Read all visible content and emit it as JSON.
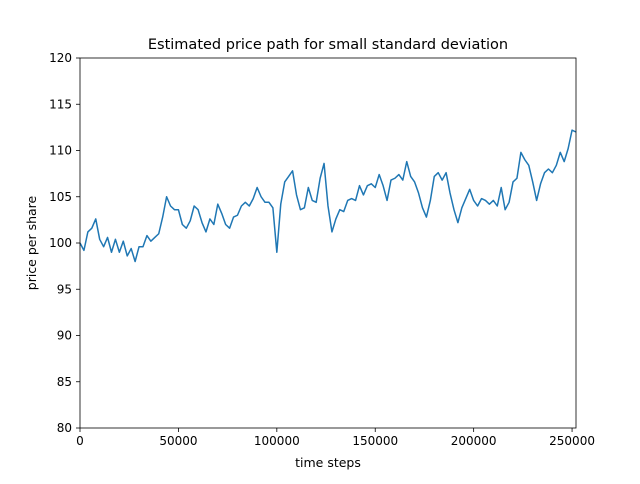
{
  "chart_data": {
    "type": "line",
    "title": "Estimated price path for small standard deviation",
    "xlabel": "time steps",
    "ylabel": "price per share",
    "xlim": [
      0,
      252000
    ],
    "ylim": [
      80,
      120
    ],
    "x_ticks": [
      0,
      50000,
      100000,
      150000,
      200000,
      250000
    ],
    "x_tick_labels": [
      "0",
      "50000",
      "100000",
      "150000",
      "200000",
      "250000"
    ],
    "y_ticks": [
      80,
      85,
      90,
      95,
      100,
      105,
      110,
      115,
      120
    ],
    "y_tick_labels": [
      "80",
      "85",
      "90",
      "95",
      "100",
      "105",
      "110",
      "115",
      "120"
    ],
    "grid": false,
    "series": [
      {
        "color": "#1f77b4",
        "x": [
          0,
          2000,
          4000,
          6000,
          8000,
          10000,
          12000,
          14000,
          16000,
          18000,
          20000,
          22000,
          24000,
          26000,
          28000,
          30000,
          32000,
          34000,
          36000,
          38000,
          40000,
          42000,
          44000,
          46000,
          48000,
          50000,
          52000,
          54000,
          56000,
          58000,
          60000,
          62000,
          64000,
          66000,
          68000,
          70000,
          72000,
          74000,
          76000,
          78000,
          80000,
          82000,
          84000,
          86000,
          88000,
          90000,
          92000,
          94000,
          96000,
          98000,
          100000,
          102000,
          104000,
          106000,
          108000,
          110000,
          112000,
          114000,
          116000,
          118000,
          120000,
          122000,
          124000,
          126000,
          128000,
          130000,
          132000,
          134000,
          136000,
          138000,
          140000,
          142000,
          144000,
          146000,
          148000,
          150000,
          152000,
          154000,
          156000,
          158000,
          160000,
          162000,
          164000,
          166000,
          168000,
          170000,
          172000,
          174000,
          176000,
          178000,
          180000,
          182000,
          184000,
          186000,
          188000,
          190000,
          192000,
          194000,
          196000,
          198000,
          200000,
          202000,
          204000,
          206000,
          208000,
          210000,
          212000,
          214000,
          216000,
          218000,
          220000,
          222000,
          224000,
          226000,
          228000,
          230000,
          232000,
          234000,
          236000,
          238000,
          240000,
          242000,
          244000,
          246000,
          248000,
          250000,
          252000
        ],
        "y": [
          100.0,
          99.2,
          101.2,
          101.6,
          102.6,
          100.4,
          99.6,
          100.6,
          99.0,
          100.4,
          99.0,
          100.2,
          98.6,
          99.4,
          98.0,
          99.6,
          99.6,
          100.8,
          100.2,
          100.6,
          101.0,
          102.8,
          105.0,
          104.0,
          103.6,
          103.6,
          102.0,
          101.6,
          102.4,
          104.0,
          103.6,
          102.2,
          101.2,
          102.6,
          102.0,
          104.2,
          103.2,
          102.0,
          101.6,
          102.8,
          103.0,
          104.0,
          104.4,
          104.0,
          104.8,
          106.0,
          105.0,
          104.4,
          104.4,
          103.8,
          99.0,
          104.2,
          106.6,
          107.2,
          107.8,
          105.2,
          103.6,
          103.8,
          106.0,
          104.6,
          104.4,
          107.0,
          108.6,
          104.0,
          101.2,
          102.6,
          103.6,
          103.4,
          104.6,
          104.8,
          104.6,
          106.2,
          105.2,
          106.2,
          106.4,
          106.0,
          107.4,
          106.2,
          104.6,
          106.8,
          107.0,
          107.4,
          106.8,
          108.8,
          107.2,
          106.6,
          105.4,
          103.8,
          102.8,
          104.6,
          107.2,
          107.6,
          106.8,
          107.6,
          105.4,
          103.6,
          102.2,
          103.8,
          104.8,
          105.8,
          104.6,
          104.0,
          104.8,
          104.6,
          104.2,
          104.6,
          104.0,
          106.0,
          103.6,
          104.4,
          106.6,
          107.0,
          109.8,
          109.0,
          108.4,
          106.6,
          104.6,
          106.4,
          107.6,
          108.0,
          107.6,
          108.4,
          109.8,
          108.8,
          110.2,
          112.2,
          112.0
        ]
      }
    ]
  }
}
